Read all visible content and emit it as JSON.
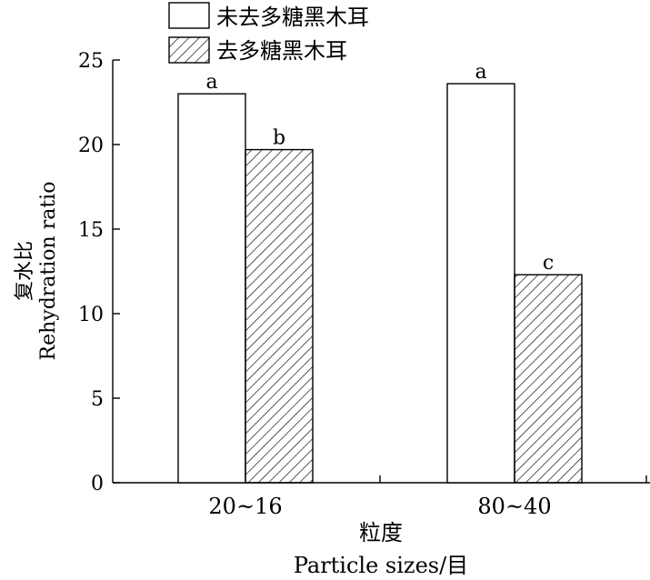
{
  "chart_data": {
    "type": "bar",
    "categories": [
      "20~16",
      "80~40"
    ],
    "series": [
      {
        "name": "未去多糖黑木耳",
        "values": [
          23.0,
          23.6
        ],
        "significance": [
          "a",
          "a"
        ],
        "pattern": "none"
      },
      {
        "name": "去多糖黑木耳",
        "values": [
          19.7,
          12.3
        ],
        "significance": [
          "b",
          "c"
        ],
        "pattern": "hatch"
      }
    ],
    "ylim": [
      0,
      25
    ],
    "yticks": [
      0,
      5,
      10,
      15,
      20,
      25
    ],
    "ylabel_cn": "复水比",
    "ylabel_en": "Rehydration ratio",
    "xlabel_cn": "粒度",
    "xlabel_en": "Particle sizes/目",
    "legend_position": "top-center",
    "grid": false,
    "colors": {
      "fill_plain": "#ffffff",
      "stroke": "#000000"
    }
  }
}
